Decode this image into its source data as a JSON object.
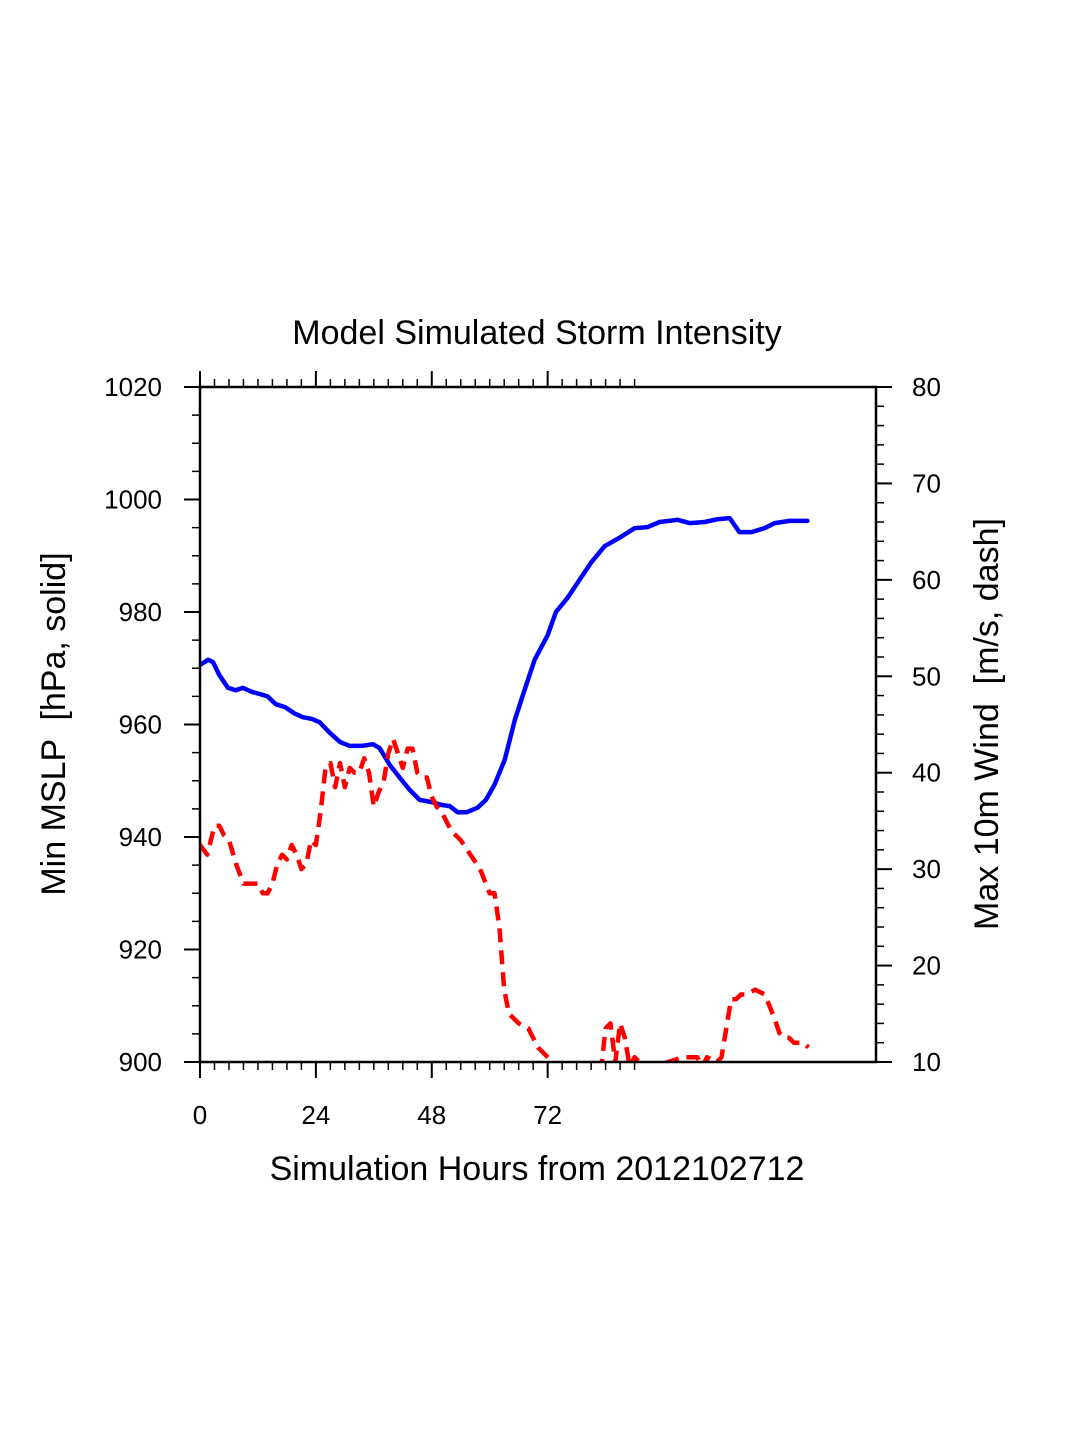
{
  "chart_data": {
    "type": "line",
    "title": "Model Simulated Storm Intensity",
    "xlabel": "Simulation Hours from 2012102712",
    "ylabel_left": "Min MSLP  [hPa, solid]",
    "ylabel_right": "Max 10m Wind  [m/s, dash]",
    "xlim": [
      0,
      140
    ],
    "ylim_left": [
      900,
      1020
    ],
    "ylim_right": [
      10,
      80
    ],
    "x_ticks": [
      0,
      24,
      48,
      72
    ],
    "x_tick_labels": [
      "0",
      "24",
      "48",
      "72"
    ],
    "x_minor_step": 3,
    "x_minor_max": 90,
    "y_left_ticks": [
      900,
      920,
      940,
      960,
      980,
      1000,
      1020
    ],
    "y_left_tick_labels": [
      "900",
      "920",
      "940",
      "960",
      "980",
      "1000",
      "1020"
    ],
    "y_left_minor_step": 5,
    "y_right_ticks": [
      10,
      20,
      30,
      40,
      50,
      60,
      70,
      80
    ],
    "y_right_tick_labels": [
      "10",
      "20",
      "30",
      "40",
      "50",
      "60",
      "70",
      "80"
    ],
    "y_right_minor_step": 2,
    "grid": false,
    "legend": "none",
    "series": [
      {
        "name": "Min MSLP",
        "axis": "left",
        "style": "solid",
        "color": "#0000ff",
        "x": [
          0,
          1.7,
          2.7,
          4,
          5.8,
          7.4,
          8.9,
          10.8,
          12.4,
          14,
          15.7,
          17.6,
          19.5,
          21.3,
          23.2,
          24.8,
          26.9,
          29,
          31,
          33.5,
          35.8,
          37.2,
          39.3,
          41.4,
          43.4,
          45.5,
          48,
          50,
          51.7,
          53.4,
          55.2,
          57.5,
          59.2,
          61,
          63.1,
          65.2,
          67.2,
          69.3,
          72,
          73.7,
          76.1,
          78.6,
          81.1,
          83.8,
          86.9,
          90,
          92.7,
          95.2,
          98.9,
          101.4,
          104.5,
          107.2,
          109.7,
          111.7,
          114.2,
          116.9,
          119,
          122.1,
          125.8
        ],
        "values": [
          970.6,
          971.5,
          971.1,
          968.8,
          966.5,
          966.1,
          966.5,
          965.8,
          965.4,
          965,
          963.6,
          963.1,
          962,
          961.3,
          961,
          960.4,
          958.5,
          956.9,
          956.2,
          956.2,
          956.5,
          955.8,
          952.8,
          950.5,
          948.4,
          946.6,
          946.2,
          945.7,
          945.5,
          944.4,
          944.4,
          945.2,
          946.6,
          949.3,
          953.7,
          960.8,
          966.1,
          971.5,
          975.9,
          980,
          982.5,
          985.7,
          988.9,
          991.7,
          993.2,
          994.9,
          995.1,
          996,
          996.4,
          995.8,
          996,
          996.5,
          996.7,
          994.2,
          994.2,
          994.9,
          995.8,
          996.2,
          996.2
        ]
      },
      {
        "name": "Max 10m Wind",
        "axis": "right",
        "style": "dash",
        "color": "#ff0000",
        "x": [
          0,
          1.5,
          3,
          4,
          5,
          6,
          7.5,
          9,
          10,
          11,
          12,
          13,
          14,
          15,
          16,
          17,
          18,
          19,
          20,
          21,
          22,
          23,
          24,
          25,
          26,
          27,
          28,
          29,
          30,
          31,
          32,
          33,
          34,
          35,
          36,
          37,
          38,
          39,
          40,
          41,
          42,
          43,
          44,
          45,
          46,
          47,
          48,
          49,
          50,
          52,
          54,
          56,
          58,
          60,
          61,
          62,
          63,
          64,
          65,
          66,
          68,
          70,
          72,
          74,
          80,
          83,
          84,
          85,
          86,
          87,
          88,
          89,
          90,
          92,
          94,
          100,
          103,
          104,
          105,
          107,
          108,
          110,
          111,
          112,
          113,
          115,
          117,
          119,
          120,
          121,
          122,
          123,
          124,
          125,
          126
        ],
        "values": [
          32.5,
          31.5,
          34.5,
          34.5,
          33.5,
          33,
          30.5,
          28.5,
          28.5,
          28.5,
          28.5,
          27.5,
          27.5,
          28.5,
          30.5,
          31.5,
          31,
          32.5,
          31.5,
          30,
          30.5,
          33,
          32.5,
          36,
          40.5,
          41,
          38.5,
          41,
          38.5,
          40.5,
          40,
          40,
          41.5,
          40,
          36.5,
          38,
          39,
          42,
          43.5,
          42,
          40.5,
          42.5,
          42.5,
          40,
          39.5,
          39.5,
          37.5,
          36.5,
          36,
          34,
          33,
          31.5,
          30,
          27.5,
          27.5,
          24,
          17.5,
          15,
          14.5,
          14,
          13.5,
          11.5,
          10.5,
          9.5,
          7,
          9,
          13.5,
          14,
          10,
          14,
          12.5,
          9.5,
          10.5,
          9.5,
          9.5,
          10.5,
          10.5,
          9.5,
          10.5,
          10,
          10.5,
          16.5,
          16.5,
          17,
          17,
          17.5,
          17,
          14.5,
          13,
          12.5,
          12.5,
          12,
          12,
          12,
          11.5
        ]
      }
    ]
  }
}
